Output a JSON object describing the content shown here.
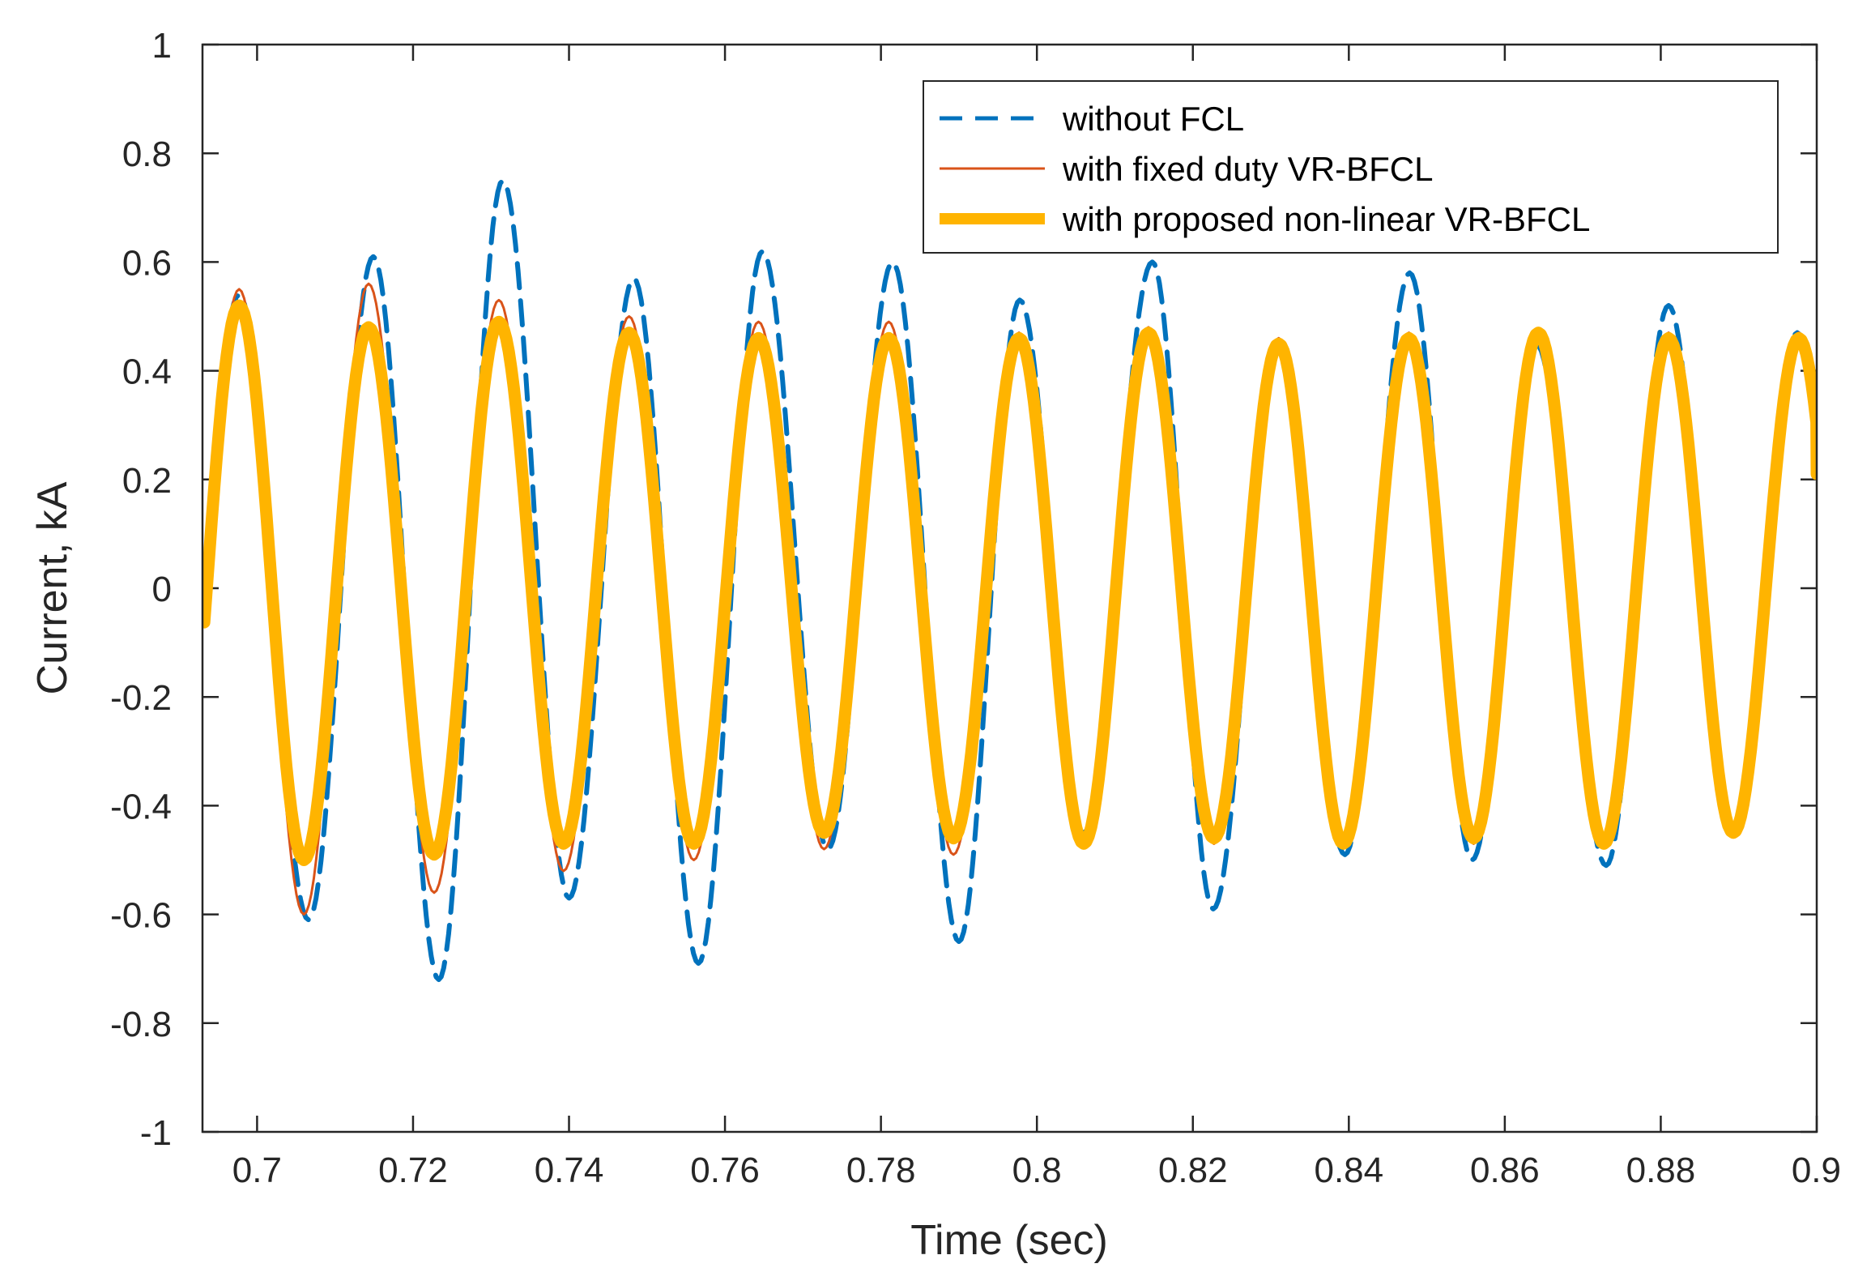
{
  "chart_data": {
    "type": "line",
    "title": "",
    "xlabel": "Time (sec)",
    "ylabel": "Current, kA",
    "xlim": [
      0.693,
      0.9
    ],
    "ylim": [
      -1,
      1
    ],
    "x_ticks": [
      0.7,
      0.72,
      0.74,
      0.76,
      0.78,
      0.8,
      0.82,
      0.84,
      0.86,
      0.88,
      0.9
    ],
    "x_tick_labels": [
      "0.7",
      "0.72",
      "0.74",
      "0.76",
      "0.78",
      "0.8",
      "0.82",
      "0.84",
      "0.86",
      "0.88",
      "0.9"
    ],
    "y_ticks": [
      -1,
      -0.8,
      -0.6,
      -0.4,
      -0.2,
      0,
      0.2,
      0.4,
      0.6,
      0.8,
      1
    ],
    "y_tick_labels": [
      "-1",
      "-0.8",
      "-0.6",
      "-0.4",
      "-0.2",
      "0",
      "0.2",
      "0.4",
      "0.6",
      "0.8",
      "1"
    ],
    "grid": false,
    "legend_position": "top-right",
    "x_start": 0.693,
    "x_end": 0.9,
    "series": [
      {
        "name": "without FCL",
        "color": "#0072BD",
        "style": "dashed",
        "start_value": 0.05,
        "end_value": 0.22,
        "extrema": [
          {
            "t": 0.6977,
            "v": 0.54
          },
          {
            "t": 0.7066,
            "v": -0.61
          },
          {
            "t": 0.7149,
            "v": 0.61
          },
          {
            "t": 0.7233,
            "v": -0.72
          },
          {
            "t": 0.7315,
            "v": 0.75
          },
          {
            "t": 0.74,
            "v": -0.57
          },
          {
            "t": 0.7483,
            "v": 0.57
          },
          {
            "t": 0.7566,
            "v": -0.69
          },
          {
            "t": 0.7648,
            "v": 0.62
          },
          {
            "t": 0.7732,
            "v": -0.48
          },
          {
            "t": 0.7815,
            "v": 0.6
          },
          {
            "t": 0.79,
            "v": -0.65
          },
          {
            "t": 0.7978,
            "v": 0.53
          },
          {
            "t": 0.806,
            "v": -0.45
          },
          {
            "t": 0.8148,
            "v": 0.6
          },
          {
            "t": 0.8226,
            "v": -0.59
          },
          {
            "t": 0.831,
            "v": 0.45
          },
          {
            "t": 0.8395,
            "v": -0.49
          },
          {
            "t": 0.8478,
            "v": 0.58
          },
          {
            "t": 0.8558,
            "v": -0.5
          },
          {
            "t": 0.864,
            "v": 0.45
          },
          {
            "t": 0.873,
            "v": -0.51
          },
          {
            "t": 0.881,
            "v": 0.52
          },
          {
            "t": 0.889,
            "v": -0.44
          },
          {
            "t": 0.8975,
            "v": 0.47
          }
        ]
      },
      {
        "name": "with fixed duty VR-BFCL",
        "color": "#D95319",
        "style": "solid",
        "start_value": 0.05,
        "end_value": 0.22,
        "extrema": [
          {
            "t": 0.6977,
            "v": 0.55
          },
          {
            "t": 0.706,
            "v": -0.6
          },
          {
            "t": 0.7143,
            "v": 0.56
          },
          {
            "t": 0.7227,
            "v": -0.56
          },
          {
            "t": 0.731,
            "v": 0.53
          },
          {
            "t": 0.7393,
            "v": -0.52
          },
          {
            "t": 0.7477,
            "v": 0.5
          },
          {
            "t": 0.756,
            "v": -0.5
          },
          {
            "t": 0.7643,
            "v": 0.49
          },
          {
            "t": 0.7727,
            "v": -0.48
          },
          {
            "t": 0.781,
            "v": 0.49
          },
          {
            "t": 0.7893,
            "v": -0.49
          },
          {
            "t": 0.7977,
            "v": 0.47
          },
          {
            "t": 0.806,
            "v": -0.47
          },
          {
            "t": 0.8143,
            "v": 0.48
          },
          {
            "t": 0.8227,
            "v": -0.47
          },
          {
            "t": 0.831,
            "v": 0.46
          },
          {
            "t": 0.8393,
            "v": -0.47
          },
          {
            "t": 0.8477,
            "v": 0.47
          },
          {
            "t": 0.856,
            "v": -0.47
          },
          {
            "t": 0.8643,
            "v": 0.47
          },
          {
            "t": 0.8727,
            "v": -0.47
          },
          {
            "t": 0.881,
            "v": 0.47
          },
          {
            "t": 0.8893,
            "v": -0.45
          },
          {
            "t": 0.8977,
            "v": 0.47
          }
        ]
      },
      {
        "name": "with proposed non-linear VR-BFCL",
        "color": "#FFB400",
        "style": "thick",
        "start_value": 0.03,
        "end_value": 0.21,
        "extrema": [
          {
            "t": 0.6977,
            "v": 0.52
          },
          {
            "t": 0.706,
            "v": -0.5
          },
          {
            "t": 0.7143,
            "v": 0.48
          },
          {
            "t": 0.7227,
            "v": -0.49
          },
          {
            "t": 0.731,
            "v": 0.49
          },
          {
            "t": 0.7393,
            "v": -0.47
          },
          {
            "t": 0.7477,
            "v": 0.47
          },
          {
            "t": 0.756,
            "v": -0.47
          },
          {
            "t": 0.7643,
            "v": 0.46
          },
          {
            "t": 0.7727,
            "v": -0.45
          },
          {
            "t": 0.781,
            "v": 0.46
          },
          {
            "t": 0.7893,
            "v": -0.46
          },
          {
            "t": 0.7977,
            "v": 0.46
          },
          {
            "t": 0.806,
            "v": -0.47
          },
          {
            "t": 0.8143,
            "v": 0.47
          },
          {
            "t": 0.8227,
            "v": -0.46
          },
          {
            "t": 0.831,
            "v": 0.45
          },
          {
            "t": 0.8393,
            "v": -0.47
          },
          {
            "t": 0.8477,
            "v": 0.46
          },
          {
            "t": 0.856,
            "v": -0.46
          },
          {
            "t": 0.8643,
            "v": 0.47
          },
          {
            "t": 0.8727,
            "v": -0.47
          },
          {
            "t": 0.881,
            "v": 0.46
          },
          {
            "t": 0.8893,
            "v": -0.45
          },
          {
            "t": 0.8977,
            "v": 0.46
          }
        ]
      }
    ]
  }
}
